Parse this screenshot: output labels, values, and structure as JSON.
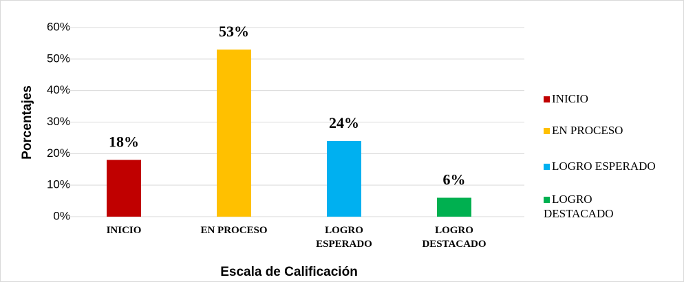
{
  "chart_data": {
    "type": "bar",
    "x_label": "Escala de Calificación",
    "y_label": "Porcentajes",
    "categories": [
      "INICIO",
      "EN PROCESO",
      "LOGRO ESPERADO",
      "LOGRO DESTACADO"
    ],
    "values": [
      18,
      53,
      24,
      6
    ],
    "value_labels": [
      "18%",
      "53%",
      "24%",
      "6%"
    ],
    "colors": [
      "#c00000",
      "#ffc000",
      "#00b0f0",
      "#00b050"
    ],
    "ylim": [
      0,
      60
    ],
    "yticks": [
      {
        "value": 0,
        "label": "0%"
      },
      {
        "value": 10,
        "label": "10%"
      },
      {
        "value": 20,
        "label": "20%"
      },
      {
        "value": 30,
        "label": "30%"
      },
      {
        "value": 40,
        "label": "40%"
      },
      {
        "value": 50,
        "label": "50%"
      },
      {
        "value": 60,
        "label": "60%"
      }
    ],
    "grid": true,
    "legend": "right"
  }
}
